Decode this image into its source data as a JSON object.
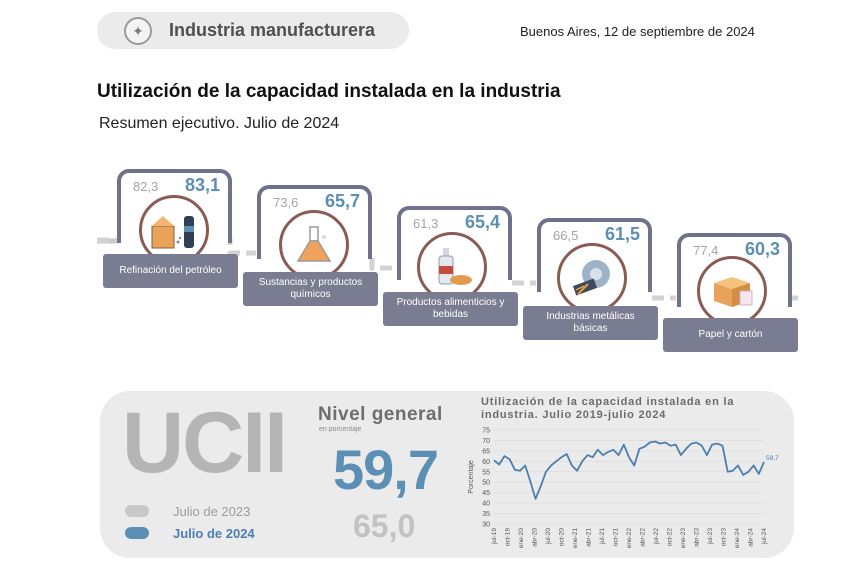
{
  "header": {
    "section_title": "Industria manufacturera",
    "dateline": "Buenos Aires, 12 de septiembre de 2024"
  },
  "report": {
    "title": "Utilización de la capacidad instalada en la industria",
    "subtitle": "Resumen ejecutivo. Julio de 2024"
  },
  "sectors": [
    {
      "name": "Refinación del petróleo",
      "prev": "82,3",
      "curr": "83,1",
      "icon": "refinery-icon"
    },
    {
      "name": "Sustancias y productos químicos",
      "prev": "73,6",
      "curr": "65,7",
      "icon": "flask-icon"
    },
    {
      "name": "Productos alimenticios y bebidas",
      "prev": "61,3",
      "curr": "65,4",
      "icon": "food-bottle-icon"
    },
    {
      "name": "Industrias metálicas básicas",
      "prev": "66,5",
      "curr": "61,5",
      "icon": "metal-industry-icon"
    },
    {
      "name": "Papel y cartón",
      "prev": "77,4",
      "curr": "60,3",
      "icon": "paper-box-icon"
    }
  ],
  "summary": {
    "acronym": "UCII",
    "legend_2023": "Julio de 2023",
    "legend_2024": "Julio de 2024",
    "nivel_label": "Nivel general",
    "nivel_unit": "en porcentaje",
    "value_2024": "59,7",
    "value_2023": "65,0",
    "colors": {
      "y2023": "#c8c8c8",
      "y2024": "#5b8fb4"
    }
  },
  "chart_data": {
    "type": "line",
    "title": "Utilización de la capacidad instalada en la industria. Julio 2019-julio 2024",
    "ylabel": "Porcentaje",
    "ylim": [
      30,
      75
    ],
    "yticks": [
      30,
      35,
      40,
      45,
      50,
      55,
      60,
      65,
      70,
      75
    ],
    "xticklabels": [
      "jul-19",
      "oct-19",
      "ene-20",
      "abr-20",
      "jul-20",
      "oct-20",
      "ene-21",
      "abr-21",
      "jul-21",
      "oct-21",
      "ene-22",
      "abr-22",
      "jul-22",
      "oct-22",
      "ene-23",
      "abr-23",
      "jul-23",
      "oct-23",
      "ene-24",
      "abr-24",
      "jul-24"
    ],
    "end_label": "59,7",
    "series": [
      {
        "color": "#4a7fb0",
        "values": [
          60.5,
          58.5,
          62.5,
          61,
          56,
          55.5,
          58,
          50.5,
          42,
          48,
          55,
          58,
          60,
          62,
          63.5,
          58,
          55.5,
          60,
          63,
          62,
          65.5,
          63,
          64.5,
          65.5,
          63,
          68,
          62,
          58,
          66,
          67,
          69,
          69.5,
          68.5,
          69,
          67.5,
          68,
          63,
          66,
          68.5,
          69,
          67.5,
          63,
          68,
          68.5,
          67.5,
          55,
          55.5,
          58,
          53.5,
          55,
          58,
          54,
          59.7
        ]
      }
    ]
  }
}
